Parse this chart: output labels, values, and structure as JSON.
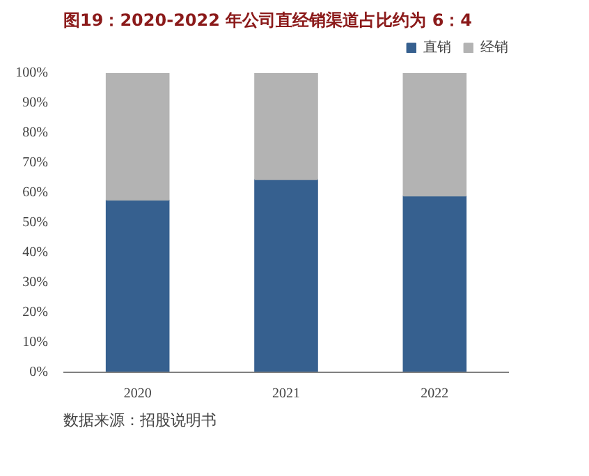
{
  "chart_data": {
    "type": "bar",
    "stacked": true,
    "title": "图19：2020-2022 年公司直经销渠道占比约为 6：4",
    "categories": [
      "2020",
      "2021",
      "2022"
    ],
    "series": [
      {
        "name": "直销",
        "color": "#36608f",
        "values": [
          57.6,
          64.5,
          59.0
        ]
      },
      {
        "name": "经销",
        "color": "#b3b3b3",
        "values": [
          42.4,
          35.5,
          41.0
        ]
      }
    ],
    "ylim": [
      0,
      100
    ],
    "yticks": [
      {
        "value": 0,
        "label": "0%"
      },
      {
        "value": 10,
        "label": "10%"
      },
      {
        "value": 20,
        "label": "20%"
      },
      {
        "value": 30,
        "label": "30%"
      },
      {
        "value": 40,
        "label": "40%"
      },
      {
        "value": 50,
        "label": "50%"
      },
      {
        "value": 60,
        "label": "60%"
      },
      {
        "value": 70,
        "label": "70%"
      },
      {
        "value": 80,
        "label": "80%"
      },
      {
        "value": 90,
        "label": "90%"
      },
      {
        "value": 100,
        "label": "100%"
      }
    ],
    "legend": "top right",
    "grid": false,
    "annotations": [
      "数据来源：招股说明书"
    ]
  }
}
